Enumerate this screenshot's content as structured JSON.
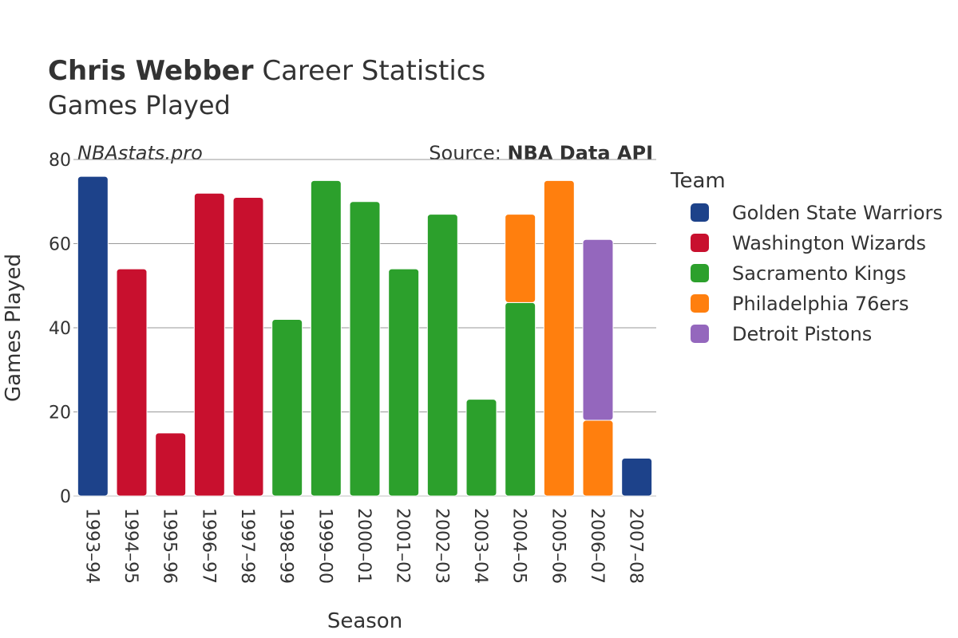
{
  "header": {
    "title_bold": "Chris Webber",
    "title_rest": " Career Statistics",
    "subtitle": "Games Played",
    "brand": "NBAstats.pro",
    "source_prefix": "Source: ",
    "source_name": "NBA Data API"
  },
  "legend": {
    "title": "Team",
    "items": [
      {
        "label": "Golden State Warriors",
        "color": "#1d428a"
      },
      {
        "label": "Washington Wizards",
        "color": "#c8102e"
      },
      {
        "label": "Sacramento Kings",
        "color": "#2ca02c"
      },
      {
        "label": "Philadelphia 76ers",
        "color": "#ff7f0e"
      },
      {
        "label": "Detroit Pistons",
        "color": "#9467bd"
      }
    ]
  },
  "chart_data": {
    "type": "bar",
    "stacked": true,
    "xlabel": "Season",
    "ylabel": "Games Played",
    "ylim": [
      0,
      80
    ],
    "yticks": [
      0,
      20,
      40,
      60,
      80
    ],
    "grid": true,
    "legend_position": "right",
    "categories": [
      "1993–94",
      "1994–95",
      "1995–96",
      "1996–97",
      "1997–98",
      "1998–99",
      "1999–00",
      "2000–01",
      "2001–02",
      "2002–03",
      "2003–04",
      "2004–05",
      "2005–06",
      "2006–07",
      "2007–08"
    ],
    "series": [
      {
        "name": "Golden State Warriors",
        "color": "#1d428a",
        "values": [
          76,
          0,
          0,
          0,
          0,
          0,
          0,
          0,
          0,
          0,
          0,
          0,
          0,
          0,
          9
        ]
      },
      {
        "name": "Washington Wizards",
        "color": "#c8102e",
        "values": [
          0,
          54,
          15,
          72,
          71,
          0,
          0,
          0,
          0,
          0,
          0,
          0,
          0,
          0,
          0
        ]
      },
      {
        "name": "Sacramento Kings",
        "color": "#2ca02c",
        "values": [
          0,
          0,
          0,
          0,
          0,
          42,
          75,
          70,
          54,
          67,
          23,
          46,
          0,
          0,
          0
        ]
      },
      {
        "name": "Philadelphia 76ers",
        "color": "#ff7f0e",
        "values": [
          0,
          0,
          0,
          0,
          0,
          0,
          0,
          0,
          0,
          0,
          0,
          21,
          75,
          18,
          0
        ]
      },
      {
        "name": "Detroit Pistons",
        "color": "#9467bd",
        "values": [
          0,
          0,
          0,
          0,
          0,
          0,
          0,
          0,
          0,
          0,
          0,
          0,
          0,
          43,
          0
        ]
      }
    ]
  }
}
